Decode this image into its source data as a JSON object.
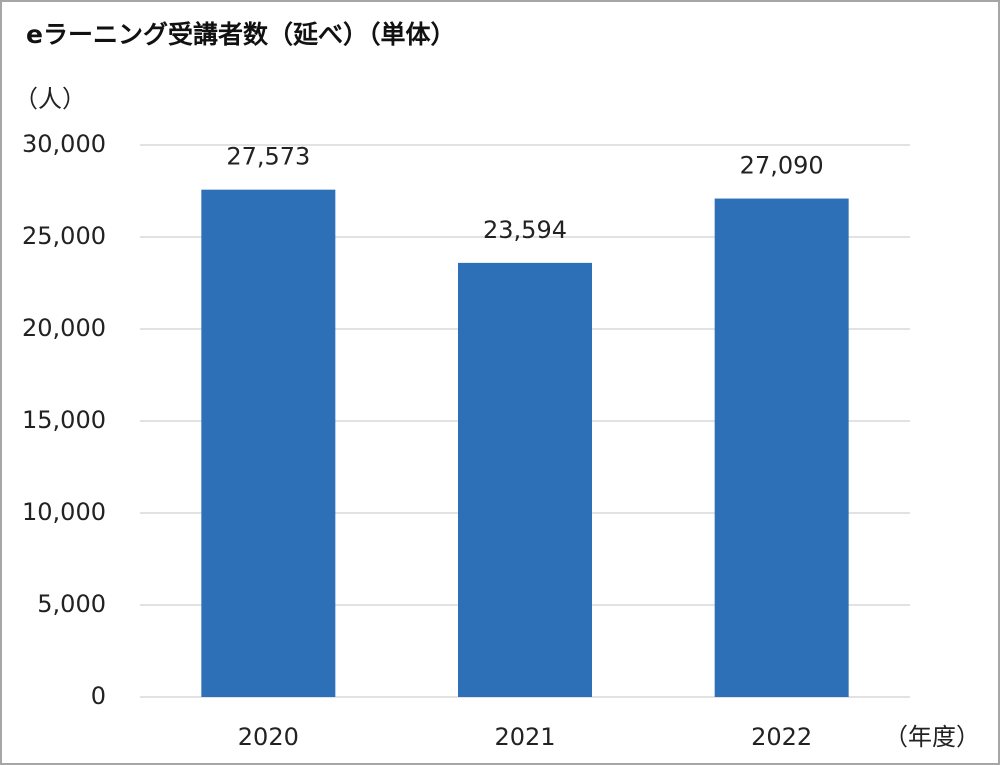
{
  "chart_data": {
    "type": "bar",
    "title": "eラーニング受講者数（延べ）（単体）",
    "y_label": "（人）",
    "x_label": "（年度）",
    "categories": [
      "2020",
      "2021",
      "2022"
    ],
    "values": [
      27573,
      23594,
      27090
    ],
    "value_labels": [
      "27,573",
      "23,594",
      "27,090"
    ],
    "color": "#2e70b8",
    "ylim": [
      0,
      30000
    ],
    "yticks": [
      0,
      {
        "value": 5000,
        "label": "5,000"
      },
      {
        "value": 10000,
        "label": "10,000"
      },
      {
        "value": 15000,
        "label": "15,000"
      },
      {
        "value": 20000,
        "label": "20,000"
      },
      {
        "value": 25000,
        "label": "25,000"
      },
      {
        "value": 30000,
        "label": "30,000"
      }
    ],
    "grid": true
  }
}
